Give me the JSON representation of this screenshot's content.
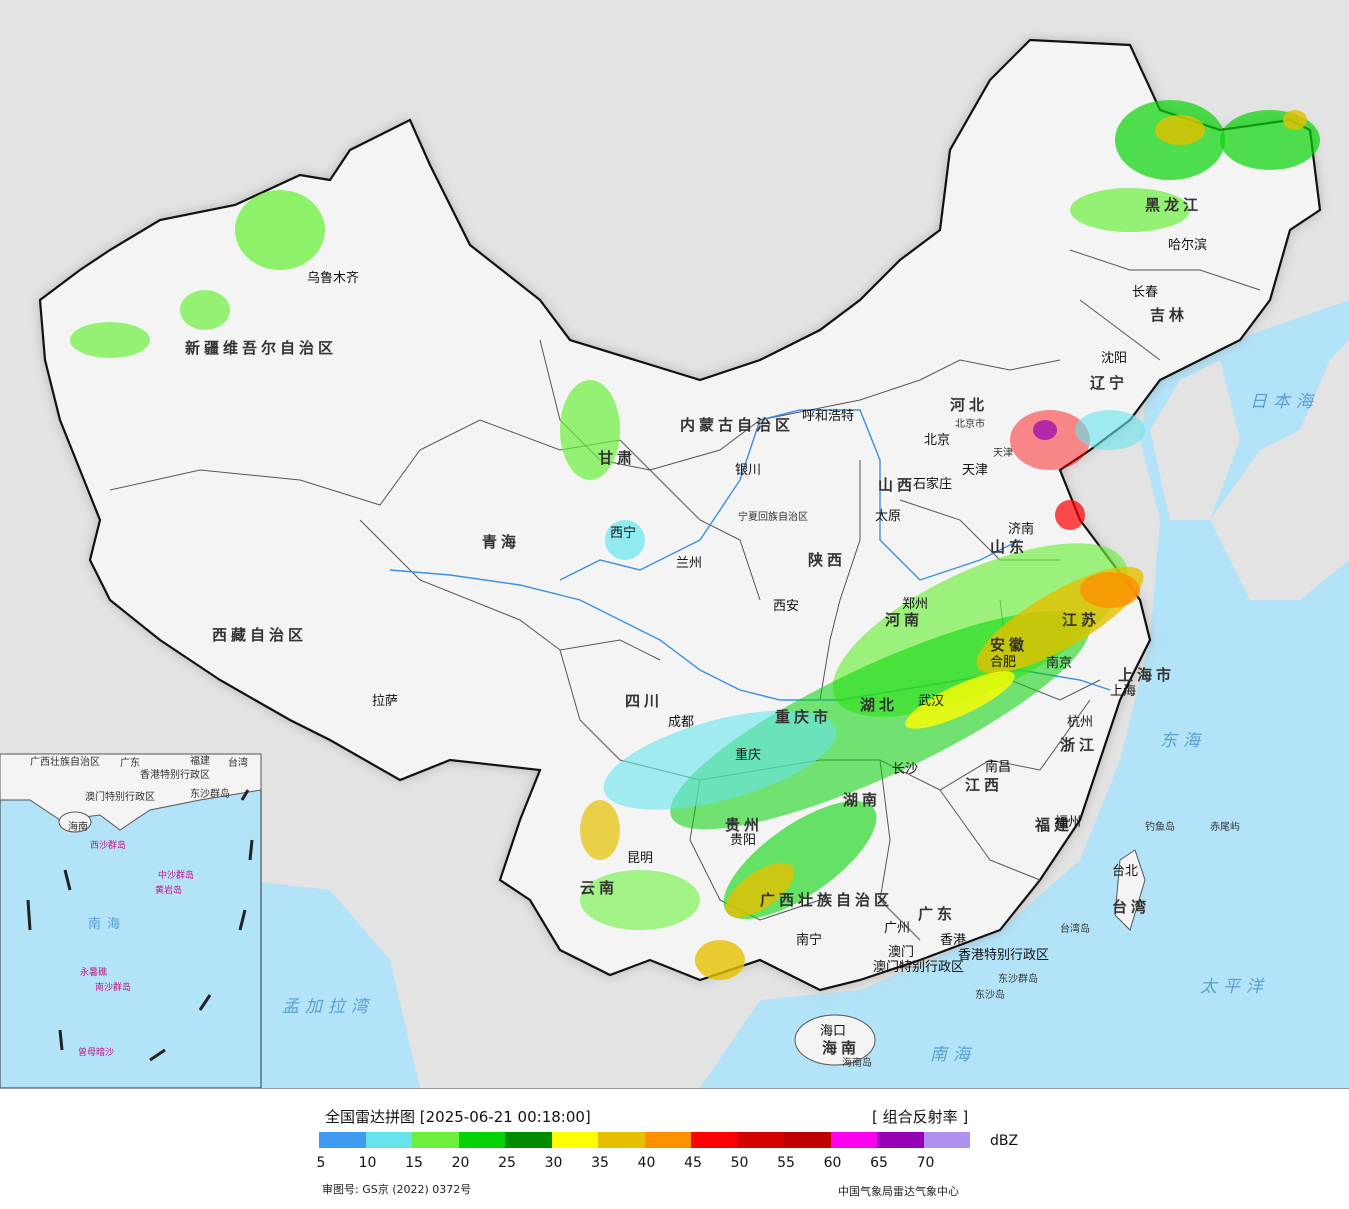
{
  "map": {
    "provinces": [
      {
        "name": "新疆维吾尔自治区"
      },
      {
        "name": "西藏自治区"
      },
      {
        "name": "青海"
      },
      {
        "name": "甘肃"
      },
      {
        "name": "内蒙古自治区"
      },
      {
        "name": "黑龙江"
      },
      {
        "name": "吉林"
      },
      {
        "name": "辽宁"
      },
      {
        "name": "河北"
      },
      {
        "name": "山西"
      },
      {
        "name": "山东"
      },
      {
        "name": "河南"
      },
      {
        "name": "陕西"
      },
      {
        "name": "四川"
      },
      {
        "name": "重庆市"
      },
      {
        "name": "湖北"
      },
      {
        "name": "安徽"
      },
      {
        "name": "江苏"
      },
      {
        "name": "浙江"
      },
      {
        "name": "江西"
      },
      {
        "name": "湖南"
      },
      {
        "name": "贵州"
      },
      {
        "name": "云南"
      },
      {
        "name": "广西壮族自治区"
      },
      {
        "name": "广东"
      },
      {
        "name": "福建"
      },
      {
        "name": "台湾"
      },
      {
        "name": "海南"
      },
      {
        "name": "上海市"
      },
      {
        "name": "宁夏回族自治区"
      },
      {
        "name": "天津"
      }
    ],
    "cities": [
      {
        "name": "乌鲁木齐"
      },
      {
        "name": "拉萨"
      },
      {
        "name": "西宁"
      },
      {
        "name": "兰州"
      },
      {
        "name": "银川"
      },
      {
        "name": "呼和浩特"
      },
      {
        "name": "北京"
      },
      {
        "name": "北京市"
      },
      {
        "name": "天津"
      },
      {
        "name": "石家庄"
      },
      {
        "name": "太原"
      },
      {
        "name": "济南"
      },
      {
        "name": "郑州"
      },
      {
        "name": "西安"
      },
      {
        "name": "成都"
      },
      {
        "name": "重庆"
      },
      {
        "name": "武汉"
      },
      {
        "name": "合肥"
      },
      {
        "name": "南京"
      },
      {
        "name": "上海"
      },
      {
        "name": "杭州"
      },
      {
        "name": "南昌"
      },
      {
        "name": "长沙"
      },
      {
        "name": "贵阳"
      },
      {
        "name": "昆明"
      },
      {
        "name": "南宁"
      },
      {
        "name": "广州"
      },
      {
        "name": "澳门"
      },
      {
        "name": "香港"
      },
      {
        "name": "福州"
      },
      {
        "name": "台北"
      },
      {
        "name": "海口"
      },
      {
        "name": "哈尔滨"
      },
      {
        "name": "长春"
      },
      {
        "name": "沈阳"
      }
    ],
    "seas": [
      {
        "name": "日本海"
      },
      {
        "name": "东海"
      },
      {
        "name": "太平洋"
      },
      {
        "name": "南海"
      },
      {
        "name": "孟加拉湾"
      }
    ],
    "islands": [
      {
        "name": "钓鱼岛"
      },
      {
        "name": "赤尾屿"
      },
      {
        "name": "台湾岛"
      },
      {
        "name": "东沙群岛"
      },
      {
        "name": "东沙岛"
      },
      {
        "name": "海南岛"
      }
    ],
    "sar": [
      {
        "name": "香港特别行政区"
      },
      {
        "name": "澳门特别行政区"
      }
    ],
    "inset": {
      "labels": [
        {
          "name": "广西壮族自治区"
        },
        {
          "name": "广东"
        },
        {
          "name": "福建"
        },
        {
          "name": "台湾"
        },
        {
          "name": "香港特别行政区"
        },
        {
          "name": "澳门特别行政区"
        },
        {
          "name": "东沙群岛"
        },
        {
          "name": "海南"
        },
        {
          "name": "西沙群岛"
        },
        {
          "name": "中沙群岛"
        },
        {
          "name": "黄岩岛"
        },
        {
          "name": "南海"
        },
        {
          "name": "永暑礁"
        },
        {
          "name": "南沙群岛"
        },
        {
          "name": "曾母暗沙"
        }
      ]
    }
  },
  "legend": {
    "title": "全国雷达拼图 [2025-06-21 00:18:00]",
    "type": "[ 组合反射率 ]",
    "unit": "dBZ",
    "colors": [
      "#3f9bef",
      "#66e5ec",
      "#6cf03c",
      "#05d305",
      "#008c00",
      "#fefe02",
      "#e5c000",
      "#fe9000",
      "#fe0000",
      "#d50000",
      "#c00000",
      "#fe00f0",
      "#9600b4",
      "#ad90f0"
    ],
    "ticks": [
      "5",
      "10",
      "15",
      "20",
      "25",
      "30",
      "35",
      "40",
      "45",
      "50",
      "55",
      "60",
      "65",
      "70"
    ]
  },
  "footer": {
    "approval": "审图号: GS京 (2022) 0372号",
    "issuer": "中国气象局雷达气象中心"
  }
}
